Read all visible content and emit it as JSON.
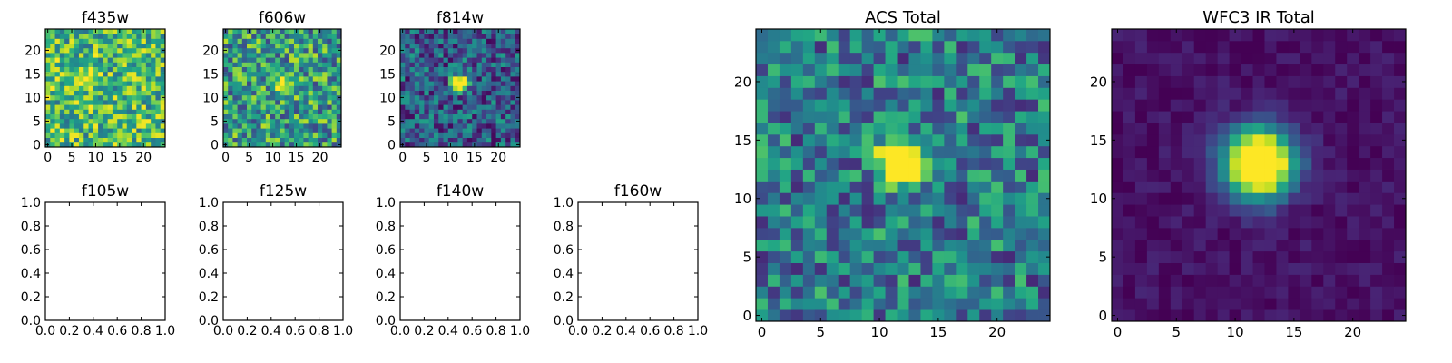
{
  "chart_data": [
    {
      "id": "f435w",
      "type": "heatmap",
      "title": "f435w",
      "colormap": "viridis",
      "source_center": [
        8,
        14
      ],
      "source_amp": 0.25,
      "source_sigma": 1.6,
      "noise_level": 0.8,
      "background": 0.68,
      "noise_amp": 0.32,
      "xlim": [
        -0.5,
        24.5
      ],
      "ylim": [
        -0.5,
        24.5
      ],
      "xticks": [
        0,
        5,
        10,
        15,
        20
      ],
      "yticks": [
        0,
        5,
        10,
        15,
        20
      ]
    },
    {
      "id": "f606w",
      "type": "heatmap",
      "title": "f606w",
      "colormap": "viridis",
      "source_center": [
        12,
        13
      ],
      "source_amp": 0.45,
      "source_sigma": 1.3,
      "noise_level": 0.6,
      "background": 0.55,
      "noise_amp": 0.35,
      "xlim": [
        -0.5,
        24.5
      ],
      "ylim": [
        -0.5,
        24.5
      ],
      "xticks": [
        0,
        5,
        10,
        15,
        20
      ],
      "yticks": [
        0,
        5,
        10,
        15,
        20
      ]
    },
    {
      "id": "f814w",
      "type": "heatmap",
      "title": "f814w",
      "colormap": "viridis",
      "source_center": [
        12,
        13
      ],
      "source_amp": 0.75,
      "source_sigma": 1.1,
      "noise_level": 0.4,
      "background": 0.3,
      "noise_amp": 0.28,
      "xlim": [
        -0.5,
        24.5
      ],
      "ylim": [
        -0.5,
        24.5
      ],
      "xticks": [
        0,
        5,
        10,
        15,
        20
      ],
      "yticks": [
        0,
        5,
        10,
        15,
        20
      ]
    },
    {
      "id": "f105w",
      "type": "empty",
      "title": "f105w",
      "xlim": [
        0,
        1
      ],
      "ylim": [
        0,
        1
      ],
      "xticks": [
        "0.0",
        "0.2",
        "0.4",
        "0.6",
        "0.8",
        "1.0"
      ],
      "yticks": [
        "0.0",
        "0.2",
        "0.4",
        "0.6",
        "0.8",
        "1.0"
      ]
    },
    {
      "id": "f125w",
      "type": "empty",
      "title": "f125w",
      "xlim": [
        0,
        1
      ],
      "ylim": [
        0,
        1
      ],
      "xticks": [
        "0.0",
        "0.2",
        "0.4",
        "0.6",
        "0.8",
        "1.0"
      ],
      "yticks": [
        "0.0",
        "0.2",
        "0.4",
        "0.6",
        "0.8",
        "1.0"
      ]
    },
    {
      "id": "f140w",
      "type": "empty",
      "title": "f140w",
      "xlim": [
        0,
        1
      ],
      "ylim": [
        0,
        1
      ],
      "xticks": [
        "0.0",
        "0.2",
        "0.4",
        "0.6",
        "0.8",
        "1.0"
      ],
      "yticks": [
        "0.0",
        "0.2",
        "0.4",
        "0.6",
        "0.8",
        "1.0"
      ]
    },
    {
      "id": "f160w",
      "type": "empty",
      "title": "f160w",
      "xlim": [
        0,
        1
      ],
      "ylim": [
        0,
        1
      ],
      "xticks": [
        "0.0",
        "0.2",
        "0.4",
        "0.6",
        "0.8",
        "1.0"
      ],
      "yticks": [
        "0.0",
        "0.2",
        "0.4",
        "0.6",
        "0.8",
        "1.0"
      ]
    },
    {
      "id": "acs_total",
      "type": "heatmap",
      "title": "ACS Total",
      "colormap": "viridis",
      "source_center": [
        12,
        13
      ],
      "source_amp": 0.8,
      "source_sigma": 1.3,
      "noise_level": 0.5,
      "background": 0.42,
      "noise_amp": 0.3,
      "xlim": [
        -0.5,
        24.5
      ],
      "ylim": [
        -0.5,
        24.5
      ],
      "xticks": [
        0,
        5,
        10,
        15,
        20
      ],
      "yticks": [
        0,
        5,
        10,
        15,
        20
      ]
    },
    {
      "id": "wfc3_ir_total",
      "type": "heatmap",
      "title": "WFC3 IR Total",
      "colormap": "viridis",
      "source_center": [
        12,
        13
      ],
      "source_amp": 0.95,
      "source_sigma": 2.0,
      "noise_level": 0.1,
      "background": 0.05,
      "noise_amp": 0.06,
      "xlim": [
        -0.5,
        24.5
      ],
      "ylim": [
        -0.5,
        24.5
      ],
      "xticks": [
        0,
        5,
        10,
        15,
        20
      ],
      "yticks": [
        0,
        5,
        10,
        15,
        20
      ]
    }
  ]
}
